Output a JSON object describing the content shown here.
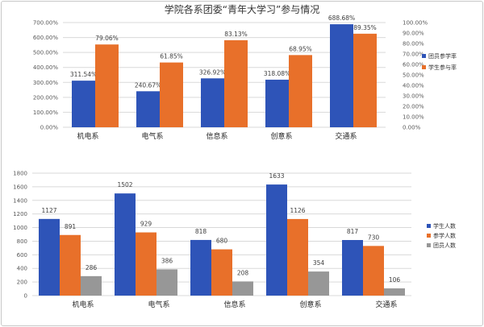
{
  "chart_data": [
    {
      "type": "bar",
      "title": "学院各系团委“青年大学习”参与情况",
      "categories": [
        "机电系",
        "电气系",
        "信息系",
        "创意系",
        "交通系"
      ],
      "series": [
        {
          "name": "团员参学率",
          "axis": "left",
          "values": [
            311.54,
            240.67,
            326.92,
            318.08,
            688.68
          ],
          "labels": [
            "311.54%",
            "240.67%",
            "326.92%",
            "318.08%",
            "688.68%"
          ]
        },
        {
          "name": "学生参与率",
          "axis": "right",
          "values": [
            79.06,
            61.85,
            83.13,
            68.95,
            89.35
          ],
          "labels": [
            "79.06%",
            "61.85%",
            "83.13%",
            "68.95%",
            "89.35%"
          ]
        }
      ],
      "left_axis": {
        "ylim": [
          0,
          700
        ],
        "ticks": [
          0,
          100,
          200,
          300,
          400,
          500,
          600,
          700
        ],
        "tick_labels": [
          "0.00%",
          "100.00%",
          "200.00%",
          "300.00%",
          "400.00%",
          "500.00%",
          "600.00%",
          "700.00%"
        ]
      },
      "right_axis": {
        "ylim": [
          0,
          100
        ],
        "ticks": [
          0,
          10,
          20,
          30,
          40,
          50,
          60,
          70,
          80,
          90,
          100
        ],
        "tick_labels": [
          "0.00%",
          "10.00%",
          "20.00%",
          "30.00%",
          "40.00%",
          "50.00%",
          "60.00%",
          "70.00%",
          "80.00%",
          "90.00%",
          "100.00%"
        ]
      },
      "grid": true,
      "legend": "right"
    },
    {
      "type": "bar",
      "title": "",
      "categories": [
        "机电系",
        "电气系",
        "信息系",
        "创意系",
        "交通系"
      ],
      "series": [
        {
          "name": "学生人数",
          "values": [
            1127,
            1502,
            818,
            1633,
            817
          ]
        },
        {
          "name": "参学人数",
          "values": [
            891,
            929,
            680,
            1126,
            730
          ]
        },
        {
          "name": "团员人数",
          "values": [
            286,
            386,
            208,
            354,
            106
          ]
        }
      ],
      "ylim": [
        0,
        1800
      ],
      "ticks": [
        0,
        200,
        400,
        600,
        800,
        1000,
        1200,
        1400,
        1600,
        1800
      ],
      "grid": true,
      "legend": "right"
    }
  ],
  "colors": {
    "blue": "#2e54b8",
    "orange": "#e8702a",
    "gray": "#979797"
  }
}
